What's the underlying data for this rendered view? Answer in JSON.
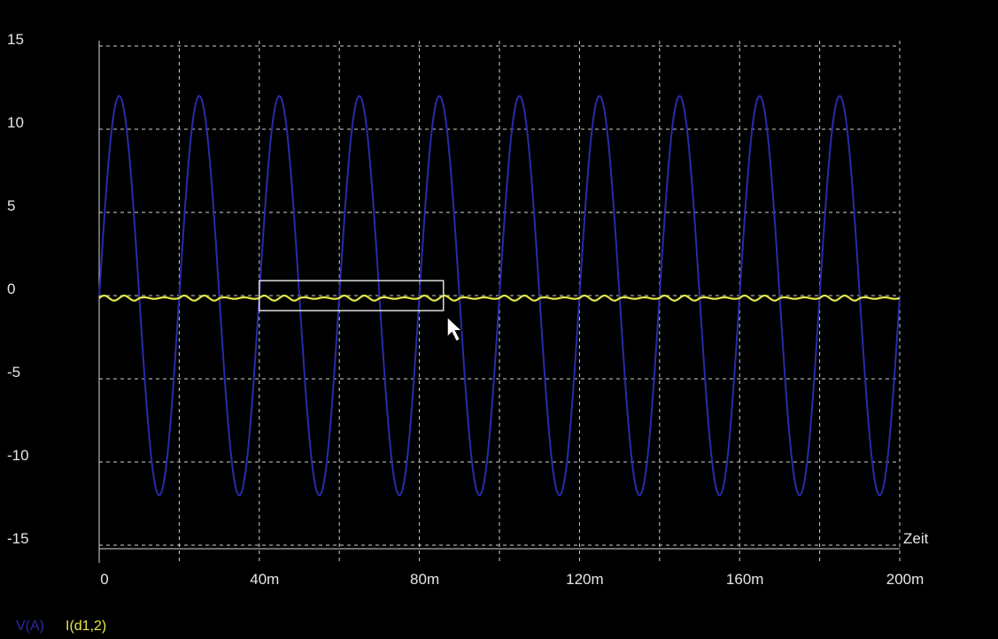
{
  "chart_data": {
    "type": "line",
    "title": "",
    "xlabel": "Zeit",
    "ylabel": "",
    "xlim": [
      0,
      0.2
    ],
    "ylim": [
      -15,
      15
    ],
    "x_grid_step": 0.02,
    "y_grid_step": 5,
    "grid": true,
    "background": "#000000",
    "x_tick_labels": [
      {
        "value": 0,
        "label": "0"
      },
      {
        "value": 0.04,
        "label": "40m"
      },
      {
        "value": 0.08,
        "label": "80m"
      },
      {
        "value": 0.12,
        "label": "120m"
      },
      {
        "value": 0.16,
        "label": "160m"
      },
      {
        "value": 0.2,
        "label": "200m"
      }
    ],
    "y_tick_labels": [
      {
        "value": 15,
        "label": "15"
      },
      {
        "value": 10,
        "label": "10"
      },
      {
        "value": 5,
        "label": "5"
      },
      {
        "value": 0,
        "label": "0"
      },
      {
        "value": -5,
        "label": "-5"
      },
      {
        "value": -10,
        "label": "-10"
      },
      {
        "value": -15,
        "label": "-15"
      }
    ],
    "series": [
      {
        "name": "V(A)",
        "color": "#2a2aa8",
        "kind": "sine",
        "amplitude": 12,
        "frequency_hz": 50,
        "phase_deg": 0,
        "x_start": 0,
        "x_end": 0.2
      },
      {
        "name": "I(d1,2)",
        "color": "#e6e64a",
        "kind": "constant",
        "value": -0.15,
        "ripple": 0.15,
        "x_start": 0,
        "x_end": 0.2
      }
    ],
    "selection_box": {
      "x0": 0.04,
      "x1": 0.086,
      "y0": 0.9,
      "y1": -0.9
    },
    "cursor": {
      "x": 0.087,
      "y": -1.3
    }
  }
}
